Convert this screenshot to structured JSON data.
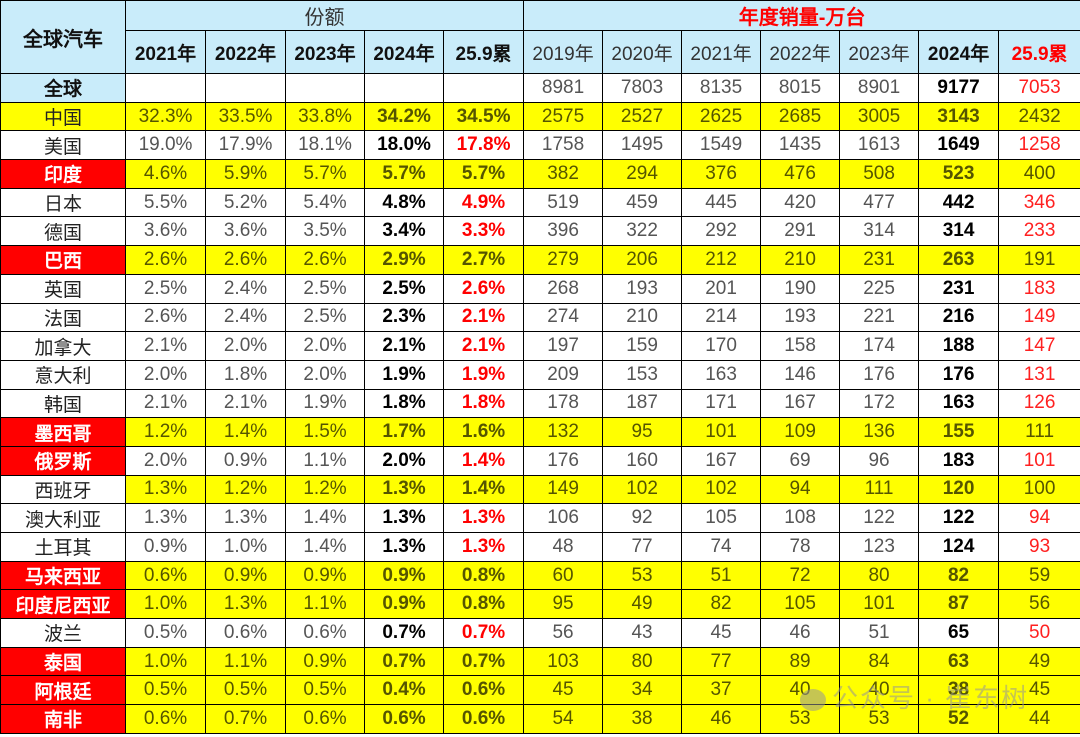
{
  "header": {
    "corner": "全球汽车",
    "share_group": "份额",
    "sales_group": "年度销量-万台",
    "share_years": [
      "2021年",
      "2022年",
      "2023年",
      "2024年",
      "25.9累"
    ],
    "sales_years": [
      "2019年",
      "2020年",
      "2021年",
      "2022年",
      "2023年",
      "2024年",
      "25.9累"
    ]
  },
  "global_row": {
    "label": "全球",
    "share": [
      "",
      "",
      "",
      "",
      ""
    ],
    "sales": [
      "8981",
      "7803",
      "8135",
      "8015",
      "8901",
      "9177",
      "7053"
    ]
  },
  "rows": [
    {
      "label": "中国",
      "label_style": "hl",
      "row_style": "yellow",
      "share": [
        "32.3%",
        "33.5%",
        "33.8%",
        "34.2%",
        "34.5%"
      ],
      "sales": [
        "2575",
        "2527",
        "2625",
        "2685",
        "3005",
        "3143",
        "2432"
      ]
    },
    {
      "label": "美国",
      "label_style": "plain",
      "row_style": "white",
      "share": [
        "19.0%",
        "17.9%",
        "18.1%",
        "18.0%",
        "17.8%"
      ],
      "sales": [
        "1758",
        "1495",
        "1549",
        "1435",
        "1613",
        "1649",
        "1258"
      ]
    },
    {
      "label": "印度",
      "label_style": "red",
      "row_style": "yellow",
      "share": [
        "4.6%",
        "5.9%",
        "5.7%",
        "5.7%",
        "5.7%"
      ],
      "sales": [
        "382",
        "294",
        "376",
        "476",
        "508",
        "523",
        "400"
      ]
    },
    {
      "label": "日本",
      "label_style": "plain",
      "row_style": "white",
      "share": [
        "5.5%",
        "5.2%",
        "5.4%",
        "4.8%",
        "4.9%"
      ],
      "sales": [
        "519",
        "459",
        "445",
        "420",
        "477",
        "442",
        "346"
      ]
    },
    {
      "label": "德国",
      "label_style": "plain",
      "row_style": "white",
      "share": [
        "3.6%",
        "3.6%",
        "3.5%",
        "3.4%",
        "3.3%"
      ],
      "sales": [
        "396",
        "322",
        "292",
        "291",
        "314",
        "314",
        "233"
      ]
    },
    {
      "label": "巴西",
      "label_style": "red",
      "row_style": "yellow",
      "share": [
        "2.6%",
        "2.6%",
        "2.6%",
        "2.9%",
        "2.7%"
      ],
      "sales": [
        "279",
        "206",
        "212",
        "210",
        "231",
        "263",
        "191"
      ]
    },
    {
      "label": "英国",
      "label_style": "plain",
      "row_style": "white",
      "share": [
        "2.5%",
        "2.4%",
        "2.5%",
        "2.5%",
        "2.6%"
      ],
      "sales": [
        "268",
        "193",
        "201",
        "190",
        "225",
        "231",
        "183"
      ]
    },
    {
      "label": "法国",
      "label_style": "plain",
      "row_style": "white",
      "share": [
        "2.6%",
        "2.4%",
        "2.5%",
        "2.3%",
        "2.1%"
      ],
      "sales": [
        "274",
        "210",
        "214",
        "193",
        "221",
        "216",
        "149"
      ]
    },
    {
      "label": "加拿大",
      "label_style": "plain",
      "row_style": "white",
      "share": [
        "2.1%",
        "2.0%",
        "2.0%",
        "2.1%",
        "2.1%"
      ],
      "sales": [
        "197",
        "159",
        "170",
        "158",
        "174",
        "188",
        "147"
      ]
    },
    {
      "label": "意大利",
      "label_style": "plain",
      "row_style": "white",
      "share": [
        "2.0%",
        "1.8%",
        "2.0%",
        "1.9%",
        "1.9%"
      ],
      "sales": [
        "209",
        "153",
        "163",
        "146",
        "176",
        "176",
        "131"
      ]
    },
    {
      "label": "韩国",
      "label_style": "plain",
      "row_style": "white",
      "share": [
        "2.1%",
        "2.1%",
        "1.9%",
        "1.8%",
        "1.8%"
      ],
      "sales": [
        "178",
        "187",
        "171",
        "167",
        "172",
        "163",
        "126"
      ]
    },
    {
      "label": "墨西哥",
      "label_style": "red",
      "row_style": "yellow",
      "share": [
        "1.2%",
        "1.4%",
        "1.5%",
        "1.7%",
        "1.6%"
      ],
      "sales": [
        "132",
        "95",
        "101",
        "109",
        "136",
        "155",
        "111"
      ]
    },
    {
      "label": "俄罗斯",
      "label_style": "red",
      "row_style": "white",
      "share": [
        "2.0%",
        "0.9%",
        "1.1%",
        "2.0%",
        "1.4%"
      ],
      "sales": [
        "176",
        "160",
        "167",
        "69",
        "96",
        "183",
        "101"
      ]
    },
    {
      "label": "西班牙",
      "label_style": "plain",
      "row_style": "yellow",
      "share": [
        "1.3%",
        "1.2%",
        "1.2%",
        "1.3%",
        "1.4%"
      ],
      "sales": [
        "149",
        "102",
        "102",
        "94",
        "111",
        "120",
        "100"
      ]
    },
    {
      "label": "澳大利亚",
      "label_style": "plain",
      "row_style": "white",
      "share": [
        "1.3%",
        "1.3%",
        "1.4%",
        "1.3%",
        "1.3%"
      ],
      "sales": [
        "106",
        "92",
        "105",
        "108",
        "122",
        "122",
        "94"
      ]
    },
    {
      "label": "土耳其",
      "label_style": "plain",
      "row_style": "white",
      "share": [
        "0.9%",
        "1.0%",
        "1.4%",
        "1.3%",
        "1.3%"
      ],
      "sales": [
        "48",
        "77",
        "74",
        "78",
        "123",
        "124",
        "93"
      ]
    },
    {
      "label": "马来西亚",
      "label_style": "red",
      "row_style": "yellow",
      "share": [
        "0.6%",
        "0.9%",
        "0.9%",
        "0.9%",
        "0.8%"
      ],
      "sales": [
        "60",
        "53",
        "51",
        "72",
        "80",
        "82",
        "59"
      ]
    },
    {
      "label": "印度尼西亚",
      "label_style": "red",
      "row_style": "yellow",
      "share": [
        "1.0%",
        "1.3%",
        "1.1%",
        "0.9%",
        "0.8%"
      ],
      "sales": [
        "95",
        "49",
        "82",
        "105",
        "101",
        "87",
        "56"
      ]
    },
    {
      "label": "波兰",
      "label_style": "plain",
      "row_style": "white",
      "share": [
        "0.5%",
        "0.6%",
        "0.6%",
        "0.7%",
        "0.7%"
      ],
      "sales": [
        "56",
        "43",
        "45",
        "46",
        "51",
        "65",
        "50"
      ]
    },
    {
      "label": "泰国",
      "label_style": "red",
      "row_style": "yellow",
      "share": [
        "1.0%",
        "1.1%",
        "0.9%",
        "0.7%",
        "0.7%"
      ],
      "sales": [
        "103",
        "80",
        "77",
        "89",
        "84",
        "63",
        "49"
      ]
    },
    {
      "label": "阿根廷",
      "label_style": "red",
      "row_style": "yellow",
      "share": [
        "0.5%",
        "0.5%",
        "0.5%",
        "0.4%",
        "0.6%"
      ],
      "sales": [
        "45",
        "34",
        "37",
        "40",
        "40",
        "38",
        "45"
      ]
    },
    {
      "label": "南非",
      "label_style": "red",
      "row_style": "yellow",
      "share": [
        "0.6%",
        "0.7%",
        "0.6%",
        "0.6%",
        "0.6%"
      ],
      "sales": [
        "54",
        "38",
        "46",
        "53",
        "53",
        "52",
        "44"
      ]
    }
  ],
  "watermark": "公众号 · 崔东树",
  "colors": {
    "header_bg": "#c9ecfa",
    "highlight_yellow": "#ffff00",
    "label_red": "#ff0000",
    "accent_red_text": "#ff0000"
  }
}
